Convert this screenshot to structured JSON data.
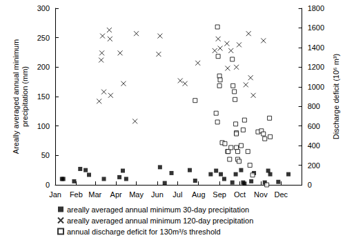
{
  "chart_data": {
    "type": "scatter",
    "y_label": "Areally averaged annual minimum\nprecipitation (mm)",
    "y2_label": "Discharge deficit (10⁶ m³)",
    "xlim": [
      0,
      365
    ],
    "xticks": [
      {
        "value": 0,
        "label": "Jan"
      },
      {
        "value": 31,
        "label": "Feb"
      },
      {
        "value": 59,
        "label": "Mar"
      },
      {
        "value": 90,
        "label": "Apr"
      },
      {
        "value": 120,
        "label": "May"
      },
      {
        "value": 151,
        "label": "Jun"
      },
      {
        "value": 181,
        "label": "Jul"
      },
      {
        "value": 212,
        "label": "Aug"
      },
      {
        "value": 243,
        "label": "Sep"
      },
      {
        "value": 273,
        "label": "Oct"
      },
      {
        "value": 304,
        "label": "Nov"
      },
      {
        "value": 334,
        "label": "Dec"
      }
    ],
    "ylim": [
      0,
      300
    ],
    "yticks": [
      0,
      50,
      100,
      150,
      200,
      250,
      300
    ],
    "y2lim": [
      0,
      1800
    ],
    "y2ticks": [
      0,
      200,
      400,
      600,
      800,
      1000,
      1200,
      1400,
      1600,
      1800
    ],
    "grid": false,
    "legend": "bottom",
    "series": [
      {
        "name": "areally averaged annual minimum 30-day precipitation",
        "color": "#000000",
        "marker": "square",
        "axis": "y",
        "x": [
          10,
          12,
          28,
          37,
          45,
          50,
          72,
          95,
          100,
          105,
          155,
          162,
          172,
          199,
          207,
          230,
          238,
          245,
          250,
          262,
          267,
          275,
          278,
          280,
          290,
          294,
          310,
          315,
          318,
          330,
          345
        ],
        "values": [
          10,
          10,
          6,
          27,
          25,
          17,
          10,
          13,
          24,
          10,
          30,
          3,
          20,
          25,
          7,
          18,
          24,
          18,
          10,
          4,
          18,
          25,
          4,
          2,
          6,
          20,
          4,
          24,
          18,
          5,
          18
        ]
      },
      {
        "name": "areally averaged annual minimum 120-day precipitation",
        "color": "#000000",
        "marker": "x",
        "axis": "y",
        "x": [
          65,
          68,
          69,
          70,
          72,
          80,
          81,
          82,
          96,
          101,
          118,
          120,
          153,
          155,
          185,
          192,
          211,
          236,
          241,
          244,
          254,
          255,
          260,
          268,
          272,
          282,
          286,
          289,
          293,
          308
        ],
        "values": [
          142,
          212,
          224,
          253,
          158,
          263,
          248,
          152,
          224,
          172,
          108,
          257,
          222,
          253,
          177,
          172,
          207,
          228,
          248,
          232,
          240,
          198,
          228,
          200,
          238,
          170,
          257,
          182,
          152,
          245
        ]
      },
      {
        "name": "annual discharge deficit for 130m³/s threshold",
        "color": "#000000",
        "marker": "square_open",
        "axis": "y2",
        "x": [
          240,
          241,
          243,
          244,
          243,
          207,
          238,
          240,
          247,
          251,
          255,
          256,
          258,
          260,
          262,
          263,
          265,
          266,
          267,
          268,
          268,
          268,
          270,
          270,
          272,
          275,
          278,
          280,
          285,
          288,
          292,
          300,
          305,
          308,
          310,
          313,
          317,
          318
        ],
        "values": [
          1610,
          1310,
          1110,
          1070,
          1010,
          860,
          730,
          640,
          430,
          420,
          340,
          340,
          260,
          380,
          1280,
          1010,
          950,
          870,
          620,
          530,
          520,
          380,
          340,
          260,
          240,
          400,
          560,
          660,
          340,
          200,
          100,
          540,
          550,
          520,
          470,
          0,
          680,
          490
        ]
      }
    ]
  }
}
